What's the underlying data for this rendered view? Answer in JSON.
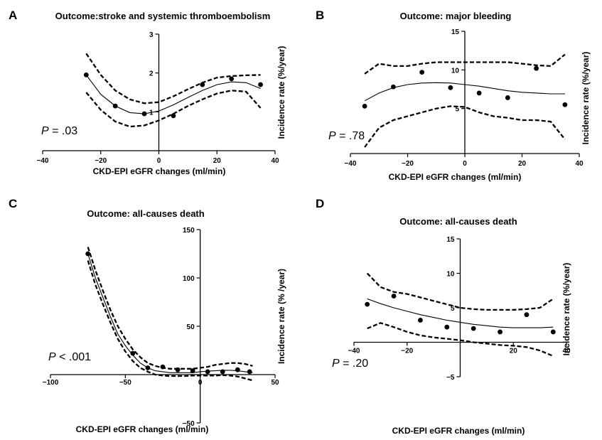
{
  "chart_data": [
    {
      "panel_label": "A",
      "type": "scatter",
      "title": "Outcome:stroke and systemic thromboembolism",
      "xlabel": "CKD-EPI eGFR changes (ml/min)",
      "ylabel": "Incidence rate (%/year)",
      "xlim": [
        -40,
        40
      ],
      "ylim": [
        0,
        3
      ],
      "xticks": [
        "−40",
        "−20",
        "0",
        "20",
        "40"
      ],
      "yticks": [
        "1",
        "2",
        "3"
      ],
      "annotation_italic": "P",
      "annotation_rest": " = .03",
      "points": [
        [
          -25,
          1.95
        ],
        [
          -15,
          1.15
        ],
        [
          -5,
          0.95
        ],
        [
          5,
          0.9
        ],
        [
          15,
          1.7
        ],
        [
          25,
          1.85
        ],
        [
          35,
          1.7
        ]
      ],
      "fit": [
        [
          -25,
          1.95
        ],
        [
          -20,
          1.45
        ],
        [
          -15,
          1.15
        ],
        [
          -10,
          0.98
        ],
        [
          -5,
          0.95
        ],
        [
          0,
          1.02
        ],
        [
          5,
          1.18
        ],
        [
          10,
          1.37
        ],
        [
          15,
          1.55
        ],
        [
          20,
          1.7
        ],
        [
          25,
          1.77
        ],
        [
          30,
          1.75
        ],
        [
          35,
          1.6
        ]
      ],
      "ci_upper": [
        [
          -25,
          2.5
        ],
        [
          -20,
          1.95
        ],
        [
          -15,
          1.55
        ],
        [
          -10,
          1.32
        ],
        [
          -5,
          1.22
        ],
        [
          0,
          1.25
        ],
        [
          5,
          1.4
        ],
        [
          10,
          1.58
        ],
        [
          15,
          1.75
        ],
        [
          20,
          1.88
        ],
        [
          25,
          1.92
        ],
        [
          30,
          1.94
        ],
        [
          35,
          1.95
        ]
      ],
      "ci_lower": [
        [
          -25,
          1.5
        ],
        [
          -20,
          1.05
        ],
        [
          -15,
          0.75
        ],
        [
          -10,
          0.62
        ],
        [
          -5,
          0.65
        ],
        [
          0,
          0.78
        ],
        [
          5,
          0.95
        ],
        [
          10,
          1.15
        ],
        [
          15,
          1.32
        ],
        [
          20,
          1.47
        ],
        [
          25,
          1.55
        ],
        [
          30,
          1.52
        ],
        [
          35,
          1.1
        ]
      ]
    },
    {
      "panel_label": "B",
      "type": "scatter",
      "title": "Outcome: major bleeding",
      "xlabel": "CKD-EPI eGFR changes (ml/min)",
      "ylabel": "Incidence rate (%/year)",
      "xlim": [
        -40,
        40
      ],
      "ylim": [
        0,
        15
      ],
      "xticks": [
        "−40",
        "−20",
        "0",
        "20",
        "40"
      ],
      "yticks": [
        "5",
        "10",
        "15"
      ],
      "annotation_italic": "P",
      "annotation_rest": " = .78",
      "points": [
        [
          -35,
          5.3
        ],
        [
          -25,
          7.8
        ],
        [
          -15,
          9.7
        ],
        [
          -5,
          7.7
        ],
        [
          5,
          7.0
        ],
        [
          15,
          6.4
        ],
        [
          25,
          10.2
        ],
        [
          35,
          5.5
        ]
      ],
      "fit": [
        [
          -35,
          6.0
        ],
        [
          -30,
          7.0
        ],
        [
          -25,
          7.7
        ],
        [
          -20,
          8.1
        ],
        [
          -15,
          8.3
        ],
        [
          -10,
          8.35
        ],
        [
          -5,
          8.3
        ],
        [
          0,
          8.1
        ],
        [
          5,
          7.9
        ],
        [
          10,
          7.6
        ],
        [
          15,
          7.3
        ],
        [
          20,
          7.1
        ],
        [
          25,
          7.0
        ],
        [
          30,
          6.9
        ],
        [
          35,
          6.9
        ]
      ],
      "ci_upper": [
        [
          -35,
          9.5
        ],
        [
          -30,
          10.8
        ],
        [
          -25,
          10.5
        ],
        [
          -20,
          10.5
        ],
        [
          -15,
          10.8
        ],
        [
          -10,
          11.0
        ],
        [
          -5,
          11.0
        ],
        [
          0,
          11.0
        ],
        [
          5,
          11.0
        ],
        [
          10,
          11.0
        ],
        [
          15,
          11.0
        ],
        [
          20,
          10.8
        ],
        [
          25,
          10.6
        ],
        [
          30,
          10.5
        ],
        [
          35,
          12.0
        ]
      ],
      "ci_lower": [
        [
          -35,
          0.0
        ],
        [
          -30,
          2.5
        ],
        [
          -25,
          3.5
        ],
        [
          -20,
          4.0
        ],
        [
          -15,
          4.5
        ],
        [
          -10,
          5.0
        ],
        [
          -5,
          5.3
        ],
        [
          0,
          5.2
        ],
        [
          5,
          4.5
        ],
        [
          10,
          4.0
        ],
        [
          15,
          3.8
        ],
        [
          20,
          3.5
        ],
        [
          25,
          3.5
        ],
        [
          30,
          3.3
        ],
        [
          35,
          1.0
        ]
      ]
    },
    {
      "panel_label": "C",
      "type": "scatter",
      "title": "Outcome: all-causes death",
      "xlabel": "CKD-EPI eGFR changes (ml/min)",
      "ylabel": "Incidence rate (% /year)",
      "xlim": [
        -100,
        50
      ],
      "ylim": [
        -50,
        150
      ],
      "xticks": [
        "−100",
        "−50",
        "0",
        "50"
      ],
      "yticks": [
        "−50",
        "50",
        "100",
        "150"
      ],
      "annotation_italic": "P",
      "annotation_rest": " < .001",
      "points": [
        [
          -75,
          125
        ],
        [
          -45,
          22
        ],
        [
          -35,
          7
        ],
        [
          -25,
          8
        ],
        [
          -15,
          5
        ],
        [
          -5,
          4
        ],
        [
          5,
          3
        ],
        [
          15,
          3
        ],
        [
          25,
          5
        ],
        [
          33,
          3
        ]
      ],
      "fit": [
        [
          -75,
          125
        ],
        [
          -70,
          100
        ],
        [
          -65,
          80
        ],
        [
          -60,
          60
        ],
        [
          -55,
          42
        ],
        [
          -50,
          30
        ],
        [
          -45,
          20
        ],
        [
          -40,
          12
        ],
        [
          -35,
          7
        ],
        [
          -30,
          4
        ],
        [
          -25,
          3
        ],
        [
          -20,
          2
        ],
        [
          -15,
          2
        ],
        [
          -10,
          2
        ],
        [
          -5,
          2
        ],
        [
          0,
          3
        ],
        [
          5,
          3.5
        ],
        [
          10,
          4
        ],
        [
          15,
          4.5
        ],
        [
          20,
          4.5
        ],
        [
          25,
          4
        ],
        [
          30,
          3
        ],
        [
          35,
          2
        ]
      ],
      "ci_upper": [
        [
          -75,
          132
        ],
        [
          -70,
          108
        ],
        [
          -65,
          87
        ],
        [
          -60,
          67
        ],
        [
          -55,
          50
        ],
        [
          -50,
          37
        ],
        [
          -45,
          26
        ],
        [
          -40,
          18
        ],
        [
          -35,
          12
        ],
        [
          -30,
          9
        ],
        [
          -25,
          7
        ],
        [
          -20,
          6
        ],
        [
          -15,
          6
        ],
        [
          -10,
          6
        ],
        [
          -5,
          6
        ],
        [
          0,
          7
        ],
        [
          5,
          8
        ],
        [
          10,
          10
        ],
        [
          15,
          11
        ],
        [
          20,
          12
        ],
        [
          25,
          12
        ],
        [
          30,
          11
        ],
        [
          35,
          9
        ]
      ],
      "ci_lower": [
        [
          -75,
          118
        ],
        [
          -70,
          93
        ],
        [
          -65,
          73
        ],
        [
          -60,
          54
        ],
        [
          -55,
          37
        ],
        [
          -50,
          24
        ],
        [
          -45,
          14
        ],
        [
          -40,
          7
        ],
        [
          -35,
          3
        ],
        [
          -30,
          0
        ],
        [
          -25,
          -1
        ],
        [
          -20,
          -1.5
        ],
        [
          -15,
          -1.5
        ],
        [
          -10,
          -1.5
        ],
        [
          -5,
          -1
        ],
        [
          0,
          -1
        ],
        [
          5,
          -1
        ],
        [
          10,
          -1
        ],
        [
          15,
          -0.5
        ],
        [
          20,
          -1
        ],
        [
          25,
          -2
        ],
        [
          30,
          -4
        ],
        [
          35,
          -6
        ]
      ]
    },
    {
      "panel_label": "D",
      "type": "scatter",
      "title": "Outcome: all-causes death",
      "xlabel": "CKD-EPI eGFR changes (ml/min)",
      "ylabel": "Incidence rate (%/year)",
      "xlim": [
        -40,
        40
      ],
      "ylim": [
        -5,
        15
      ],
      "xticks": [
        "−40",
        "−20",
        "20",
        "40"
      ],
      "yticks": [
        "−5",
        "5",
        "10",
        "15"
      ],
      "annotation_italic": "P",
      "annotation_rest": " = .20",
      "points": [
        [
          -35,
          5.5
        ],
        [
          -25,
          6.7
        ],
        [
          -15,
          3.2
        ],
        [
          -5,
          2.2
        ],
        [
          5,
          2.0
        ],
        [
          15,
          1.5
        ],
        [
          25,
          4.0
        ],
        [
          35,
          1.5
        ]
      ],
      "fit": [
        [
          -35,
          6.3
        ],
        [
          -30,
          5.6
        ],
        [
          -25,
          5.0
        ],
        [
          -20,
          4.5
        ],
        [
          -15,
          4.0
        ],
        [
          -10,
          3.6
        ],
        [
          -5,
          3.2
        ],
        [
          0,
          2.9
        ],
        [
          5,
          2.6
        ],
        [
          10,
          2.4
        ],
        [
          15,
          2.2
        ],
        [
          20,
          2.1
        ],
        [
          25,
          2.1
        ],
        [
          30,
          2.1
        ],
        [
          35,
          2.2
        ]
      ],
      "ci_upper": [
        [
          -35,
          10.0
        ],
        [
          -30,
          8.0
        ],
        [
          -25,
          7.3
        ],
        [
          -20,
          7.0
        ],
        [
          -15,
          6.5
        ],
        [
          -10,
          6.0
        ],
        [
          -5,
          5.5
        ],
        [
          0,
          5.0
        ],
        [
          5,
          4.8
        ],
        [
          10,
          4.7
        ],
        [
          15,
          4.7
        ],
        [
          20,
          4.7
        ],
        [
          25,
          4.8
        ],
        [
          30,
          5.0
        ],
        [
          35,
          6.3
        ]
      ],
      "ci_lower": [
        [
          -35,
          2.0
        ],
        [
          -30,
          2.8
        ],
        [
          -25,
          2.2
        ],
        [
          -20,
          1.5
        ],
        [
          -15,
          1.0
        ],
        [
          -10,
          0.7
        ],
        [
          -5,
          0.5
        ],
        [
          0,
          0.3
        ],
        [
          5,
          0.0
        ],
        [
          10,
          -0.2
        ],
        [
          15,
          -0.4
        ],
        [
          20,
          -0.5
        ],
        [
          25,
          -0.7
        ],
        [
          30,
          -1.2
        ],
        [
          35,
          -2.0
        ]
      ]
    }
  ]
}
